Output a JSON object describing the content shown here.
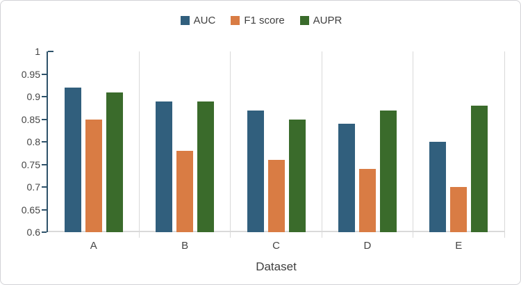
{
  "chart_data": {
    "type": "bar",
    "title": "",
    "categories": [
      "A",
      "B",
      "C",
      "D",
      "E"
    ],
    "series": [
      {
        "name": "AUC",
        "color": "#315f7d",
        "values": [
          0.92,
          0.89,
          0.87,
          0.84,
          0.8
        ]
      },
      {
        "name": "F1 score",
        "color": "#d97c44",
        "values": [
          0.85,
          0.78,
          0.76,
          0.74,
          0.7
        ]
      },
      {
        "name": "AUPR",
        "color": "#3a6b2b",
        "values": [
          0.91,
          0.89,
          0.85,
          0.87,
          0.88
        ]
      }
    ],
    "xlabel": "Dataset",
    "ylabel": "",
    "ylim": [
      0.6,
      1.0
    ],
    "ytick_step": 0.05,
    "ytick_labels": [
      "0.6",
      "0.65",
      "0.7",
      "0.75",
      "0.8",
      "0.85",
      "0.9",
      "0.95",
      "1"
    ],
    "grid": "vertical-category-boundaries",
    "horizontal_gridlines": false,
    "legend_position": "top-center"
  },
  "colors": {
    "value_axis_line": "#2e526a",
    "category_axis_line": "#d9d9d9",
    "gridline": "#d9d9d9",
    "text": "#444444",
    "frame_border": "#d2d2d6",
    "background": "#ffffff"
  }
}
